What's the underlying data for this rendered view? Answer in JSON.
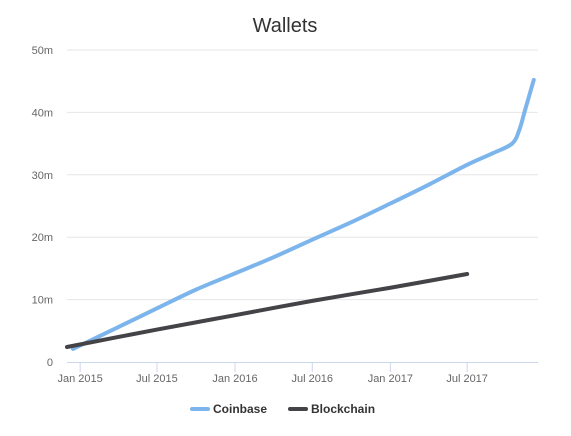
{
  "chart_data": {
    "type": "line",
    "title": "Wallets",
    "xlabel": "",
    "ylabel": "",
    "x_type": "datetime",
    "x_ticks": [
      {
        "date": "2015-01-01",
        "label": "Jan 2015"
      },
      {
        "date": "2015-07-01",
        "label": "Jul 2015"
      },
      {
        "date": "2016-01-01",
        "label": "Jan 2016"
      },
      {
        "date": "2016-07-01",
        "label": "Jul 2016"
      },
      {
        "date": "2017-01-01",
        "label": "Jan 2017"
      },
      {
        "date": "2017-07-01",
        "label": "Jul 2017"
      }
    ],
    "xlim": [
      "2014-12-01",
      "2017-12-15"
    ],
    "y_ticks": [
      {
        "value": 0,
        "label": "0"
      },
      {
        "value": 10,
        "label": "10m"
      },
      {
        "value": 20,
        "label": "20m"
      },
      {
        "value": 30,
        "label": "30m"
      },
      {
        "value": 40,
        "label": "40m"
      },
      {
        "value": 50,
        "label": "50m"
      }
    ],
    "ylim": [
      0,
      50
    ],
    "y_unit": "millions",
    "grid": true,
    "legend_position": "bottom-center",
    "series": [
      {
        "name": "Coinbase",
        "color": "#7cb5ec",
        "points": [
          {
            "x": "2014-12-15",
            "y": 2.1
          },
          {
            "x": "2015-04-01",
            "y": 5.6
          },
          {
            "x": "2015-07-01",
            "y": 8.6
          },
          {
            "x": "2015-10-01",
            "y": 11.6
          },
          {
            "x": "2016-01-01",
            "y": 14.2
          },
          {
            "x": "2016-04-01",
            "y": 16.8
          },
          {
            "x": "2016-07-01",
            "y": 19.6
          },
          {
            "x": "2016-10-01",
            "y": 22.4
          },
          {
            "x": "2017-01-01",
            "y": 25.4
          },
          {
            "x": "2017-04-01",
            "y": 28.4
          },
          {
            "x": "2017-07-01",
            "y": 31.6
          },
          {
            "x": "2017-09-01",
            "y": 33.5
          },
          {
            "x": "2017-10-15",
            "y": 35.0
          },
          {
            "x": "2017-11-01",
            "y": 37.2
          },
          {
            "x": "2017-11-15",
            "y": 40.5
          },
          {
            "x": "2017-12-05",
            "y": 45.2
          }
        ]
      },
      {
        "name": "Blockchain",
        "color": "#434348",
        "points": [
          {
            "x": "2014-12-01",
            "y": 2.4
          },
          {
            "x": "2015-07-01",
            "y": 5.2
          },
          {
            "x": "2016-01-01",
            "y": 7.5
          },
          {
            "x": "2016-07-01",
            "y": 9.8
          },
          {
            "x": "2017-01-01",
            "y": 11.9
          },
          {
            "x": "2017-07-01",
            "y": 14.1
          }
        ]
      }
    ]
  }
}
